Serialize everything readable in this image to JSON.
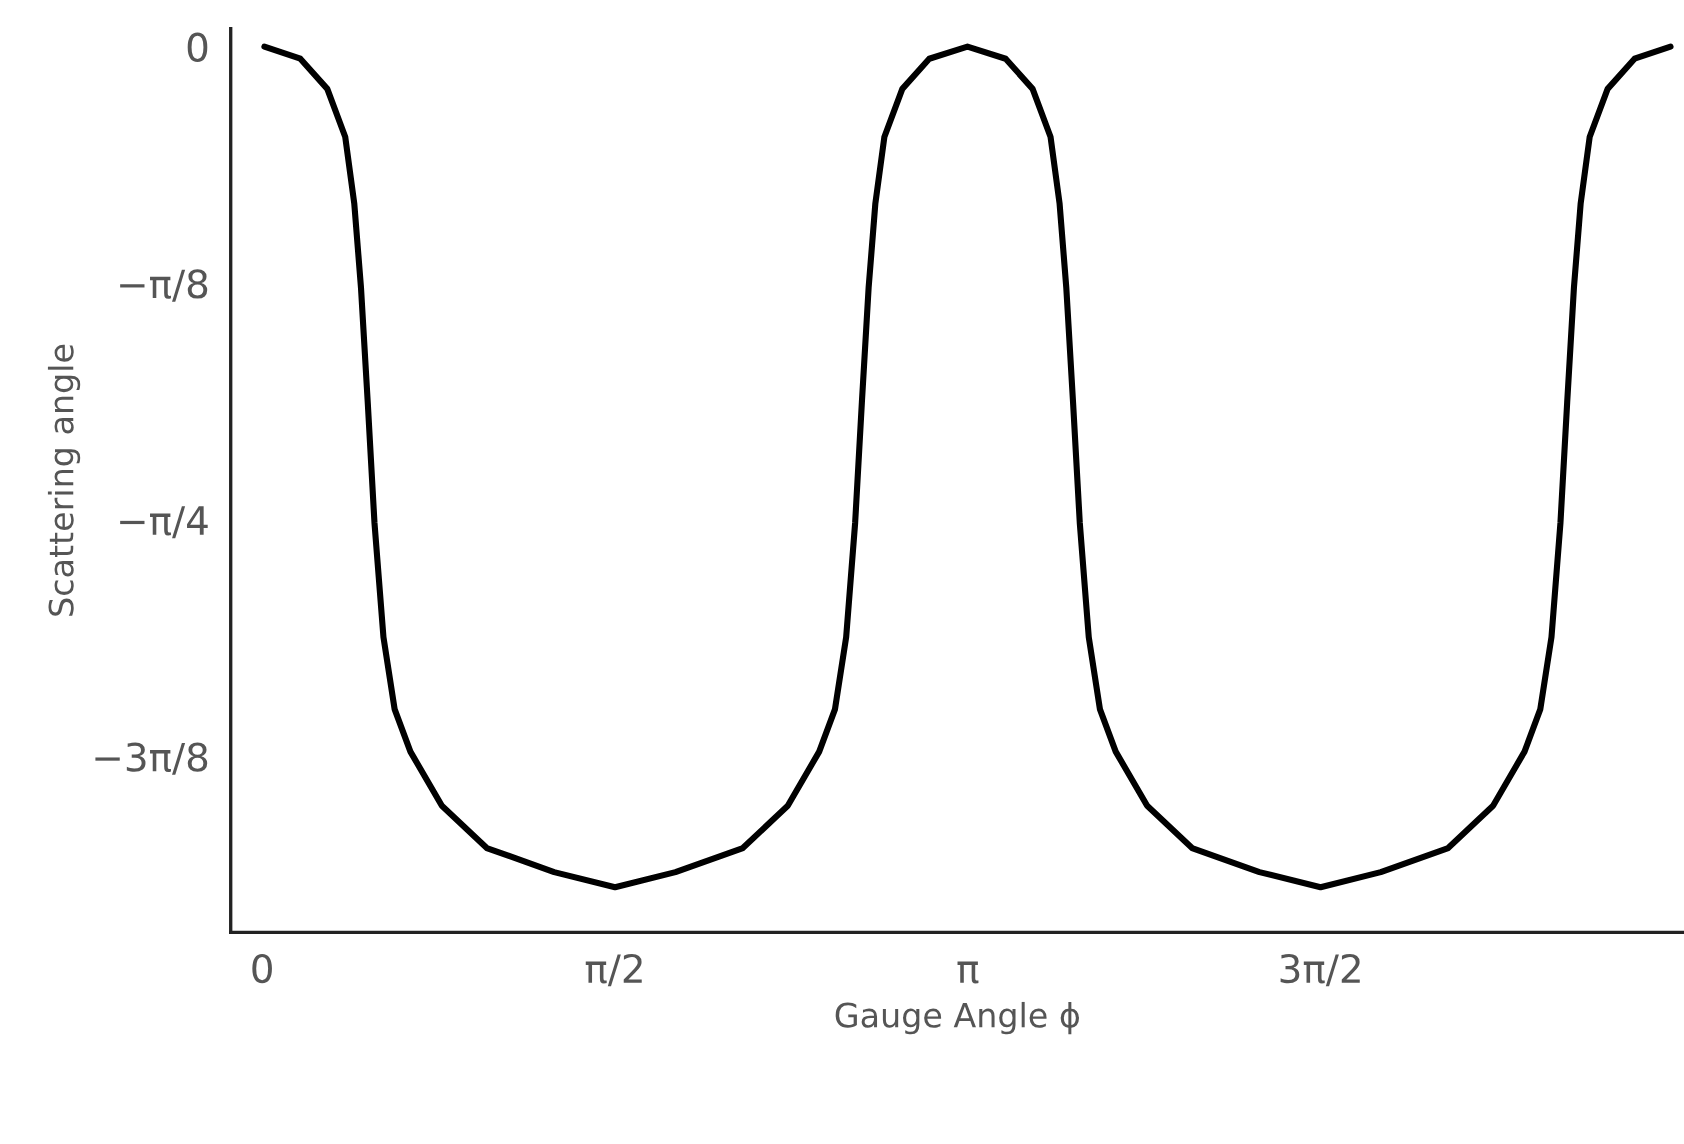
{
  "chart_data": {
    "type": "line",
    "xlabel": "Gauge Angle ϕ",
    "ylabel": "Scattering angle",
    "x": [
      0.01,
      0.17,
      0.29,
      0.37,
      0.41,
      0.44,
      0.47,
      0.5,
      0.54,
      0.59,
      0.66,
      0.8,
      1.0,
      1.3,
      1.571,
      1.84,
      2.14,
      2.34,
      2.48,
      2.55,
      2.6,
      2.64,
      2.67,
      2.7,
      2.73,
      2.77,
      2.85,
      2.97,
      3.14,
      3.31,
      3.43,
      3.51,
      3.55,
      3.58,
      3.61,
      3.64,
      3.68,
      3.73,
      3.8,
      3.94,
      4.14,
      4.44,
      4.712,
      4.98,
      5.28,
      5.48,
      5.62,
      5.69,
      5.74,
      5.78,
      5.81,
      5.84,
      5.87,
      5.91,
      5.99,
      6.11,
      6.27
    ],
    "series": [
      {
        "color": "#000000",
        "values": [
          0,
          -0.02,
          -0.07,
          -0.15,
          -0.26,
          -0.4,
          -0.59,
          -0.79,
          -0.98,
          -1.1,
          -1.17,
          -1.26,
          -1.33,
          -1.37,
          -1.395,
          -1.37,
          -1.33,
          -1.26,
          -1.17,
          -1.1,
          -0.98,
          -0.79,
          -0.59,
          -0.4,
          -0.26,
          -0.15,
          -0.07,
          -0.02,
          0,
          -0.02,
          -0.07,
          -0.15,
          -0.26,
          -0.4,
          -0.59,
          -0.79,
          -0.98,
          -1.1,
          -1.17,
          -1.26,
          -1.33,
          -1.37,
          -1.395,
          -1.37,
          -1.33,
          -1.26,
          -1.17,
          -1.1,
          -0.98,
          -0.79,
          -0.59,
          -0.4,
          -0.26,
          -0.15,
          -0.07,
          -0.02,
          0
        ]
      }
    ],
    "xlim": [
      -0.14,
      6.33
    ],
    "ylim": [
      -1.47,
      0.03
    ],
    "xticks": [
      0,
      {
        "value": 1.5708,
        "label": "π/2"
      },
      {
        "value": 3.1416,
        "label": "π"
      },
      {
        "value": 4.7124,
        "label": "3π/2"
      }
    ],
    "yticks": [
      0,
      {
        "value": -0.3927,
        "label": "−π/8"
      },
      {
        "value": -0.7854,
        "label": "−π/4"
      },
      {
        "value": -1.1781,
        "label": "−3π/8"
      }
    ],
    "grid": false,
    "marker": "none",
    "line_style": "solid"
  }
}
